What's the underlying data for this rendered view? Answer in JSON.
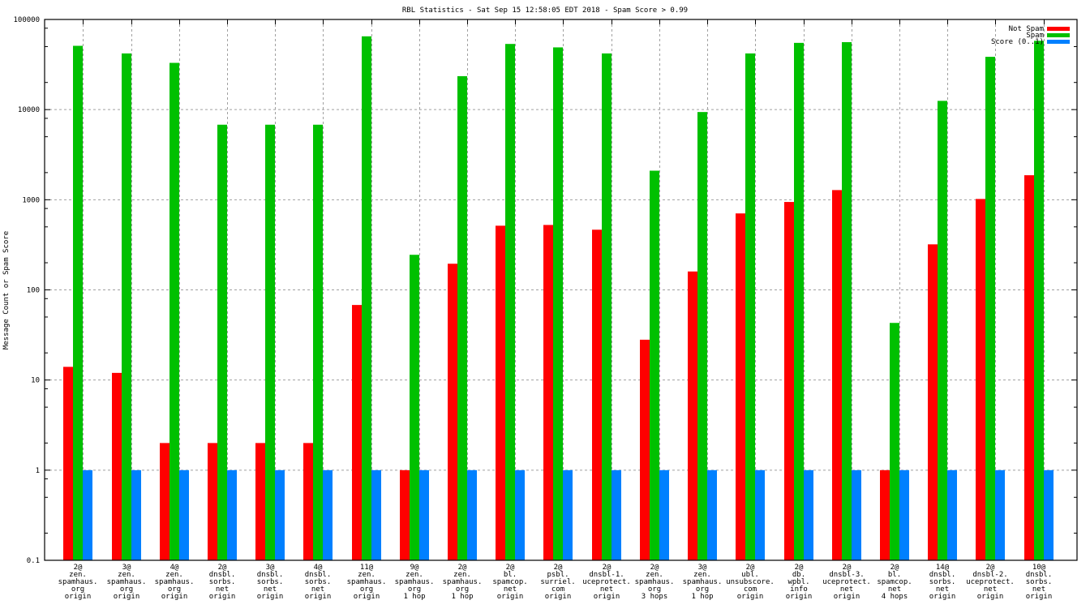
{
  "chart_data": {
    "type": "bar",
    "title": "RBL Statistics - Sat Sep 15 12:58:05 EDT 2018 - Spam Score > 0.99",
    "xlabel": "",
    "ylabel": "Message Count or Spam Score",
    "yscale": "log",
    "ylim": [
      0.1,
      100000
    ],
    "yticks": [
      {
        "value": 0.1,
        "label": "0.1"
      },
      {
        "value": 1,
        "label": "1"
      },
      {
        "value": 10,
        "label": "10"
      },
      {
        "value": 100,
        "label": "100"
      },
      {
        "value": 1000,
        "label": "1000"
      },
      {
        "value": 10000,
        "label": "10000"
      },
      {
        "value": 100000,
        "label": "100000"
      }
    ],
    "grid": true,
    "legend_position": "top-right",
    "categories": [
      [
        "2@",
        "zen.",
        "spamhaus.",
        "org",
        "origin"
      ],
      [
        "3@",
        "zen.",
        "spamhaus.",
        "org",
        "origin"
      ],
      [
        "4@",
        "zen.",
        "spamhaus.",
        "org",
        "origin"
      ],
      [
        "2@",
        "dnsbl.",
        "sorbs.",
        "net",
        "origin"
      ],
      [
        "3@",
        "dnsbl.",
        "sorbs.",
        "net",
        "origin"
      ],
      [
        "4@",
        "dnsbl.",
        "sorbs.",
        "net",
        "origin"
      ],
      [
        "11@",
        "zen.",
        "spamhaus.",
        "org",
        "origin"
      ],
      [
        "9@",
        "zen.",
        "spamhaus.",
        "org",
        "1 hop"
      ],
      [
        "2@",
        "zen.",
        "spamhaus.",
        "org",
        "1 hop"
      ],
      [
        "2@",
        "bl.",
        "spamcop.",
        "net",
        "origin"
      ],
      [
        "2@",
        "psbl.",
        "surriel.",
        "com",
        "origin"
      ],
      [
        "2@",
        "dnsbl-1.",
        "uceprotect.",
        "net",
        "origin"
      ],
      [
        "2@",
        "zen.",
        "spamhaus.",
        "org",
        "3 hops"
      ],
      [
        "3@",
        "zen.",
        "spamhaus.",
        "org",
        "1 hop"
      ],
      [
        "2@",
        "ubl.",
        "unsubscore.",
        "com",
        "origin"
      ],
      [
        "2@",
        "db.",
        "wpbl.",
        "info",
        "origin"
      ],
      [
        "2@",
        "dnsbl-3.",
        "uceprotect.",
        "net",
        "origin"
      ],
      [
        "2@",
        "bl.",
        "spamcop.",
        "net",
        "4 hops"
      ],
      [
        "14@",
        "dnsbl.",
        "sorbs.",
        "net",
        "origin"
      ],
      [
        "2@",
        "dnsbl-2.",
        "uceprotect.",
        "net",
        "origin"
      ],
      [
        "10@",
        "dnsbl.",
        "sorbs.",
        "net",
        "origin"
      ]
    ],
    "series": [
      {
        "name": "Not Spam",
        "color": "#ff0000",
        "values": [
          14,
          12,
          2,
          2,
          2,
          2,
          68,
          1,
          195,
          515,
          525,
          465,
          28,
          160,
          705,
          945,
          1280,
          1,
          320,
          1020,
          1870
        ]
      },
      {
        "name": "Spam",
        "color": "#00c000",
        "values": [
          51000,
          42000,
          33000,
          6800,
          6800,
          6800,
          65000,
          245,
          23500,
          53500,
          49000,
          42000,
          2100,
          9400,
          42000,
          55000,
          56000,
          43,
          12500,
          38500,
          58000
        ]
      },
      {
        "name": "Score (0..1)",
        "color": "#0080ff",
        "values": [
          1,
          1,
          1,
          1,
          1,
          1,
          1,
          1,
          1,
          1,
          1,
          1,
          1,
          1,
          1,
          1,
          1,
          1,
          1,
          1,
          1
        ]
      }
    ]
  }
}
